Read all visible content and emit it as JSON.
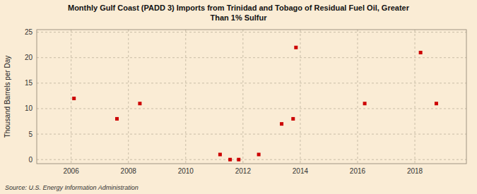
{
  "chart_data": {
    "type": "scatter",
    "title": "Monthly Gulf Coast (PADD 3) Imports from Trinidad and Tobago of Residual Fuel Oil, Greater\nThan 1% Sulfur",
    "ylabel": "Thousand Barrels per Day",
    "source": "Source: U.S. Energy Information Administration",
    "xlim": [
      2004.8,
      2019.8
    ],
    "ylim": [
      -0.8,
      25.5
    ],
    "xticks": [
      2006,
      2008,
      2010,
      2012,
      2014,
      2016,
      2018
    ],
    "yticks": [
      0,
      5,
      10,
      15,
      20,
      25
    ],
    "grid": true,
    "series": [
      {
        "color": "#cc0000",
        "marker": "square",
        "x": [
          2006.1,
          2007.6,
          2008.4,
          2011.2,
          2011.55,
          2011.85,
          2012.55,
          2013.35,
          2013.75,
          2016.25,
          2018.2,
          2018.75
        ],
        "values": [
          12,
          8,
          11,
          1,
          0,
          0,
          1,
          7,
          8,
          11,
          21,
          11
        ]
      },
      {
        "color": "#cc0000",
        "marker": "square",
        "x": [
          2013.85
        ],
        "values": [
          22
        ]
      }
    ]
  }
}
